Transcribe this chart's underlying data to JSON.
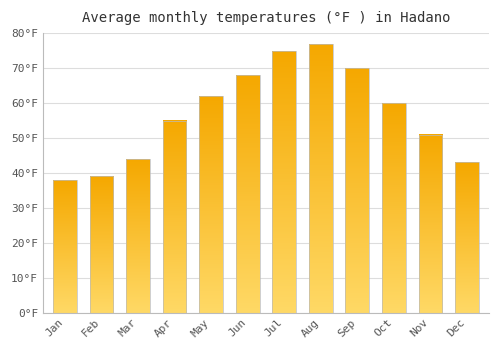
{
  "title": "Average monthly temperatures (°F ) in Hadano",
  "months": [
    "Jan",
    "Feb",
    "Mar",
    "Apr",
    "May",
    "Jun",
    "Jul",
    "Aug",
    "Sep",
    "Oct",
    "Nov",
    "Dec"
  ],
  "values": [
    38,
    39,
    44,
    55,
    62,
    68,
    75,
    77,
    70,
    60,
    51,
    43
  ],
  "bar_color_top": "#F5A800",
  "bar_color_bottom": "#FFD966",
  "ylim": [
    0,
    80
  ],
  "yticks": [
    0,
    10,
    20,
    30,
    40,
    50,
    60,
    70,
    80
  ],
  "ytick_labels": [
    "0°F",
    "10°F",
    "20°F",
    "30°F",
    "40°F",
    "50°F",
    "60°F",
    "70°F",
    "80°F"
  ],
  "background_color": "#ffffff",
  "plot_bg_color": "#ffffff",
  "grid_color": "#dddddd",
  "title_fontsize": 10,
  "tick_fontsize": 8,
  "bar_edge_color": "#bbbbbb",
  "bar_width": 0.65,
  "figsize": [
    5.0,
    3.5
  ],
  "dpi": 100
}
